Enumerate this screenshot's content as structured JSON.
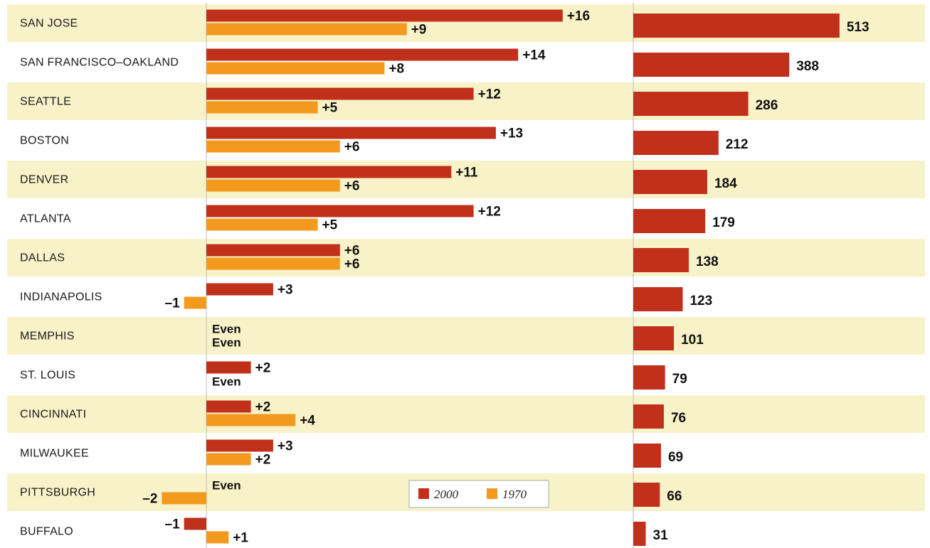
{
  "chart_data": [
    {
      "type": "bar",
      "orientation": "horizontal",
      "categories": [
        "SAN JOSE",
        "SAN FRANCISCO–OAKLAND",
        "SEATTLE",
        "BOSTON",
        "DENVER",
        "ATLANTA",
        "DALLAS",
        "INDIANAPOLIS",
        "MEMPHIS",
        "ST. LOUIS",
        "CINCINNATI",
        "MILWAUKEE",
        "PITTSBURGH",
        "BUFFALO"
      ],
      "series": [
        {
          "name": "2000",
          "values": [
            16,
            14,
            12,
            13,
            11,
            12,
            6,
            3,
            0,
            2,
            2,
            3,
            0,
            -1
          ],
          "labels": [
            "+16",
            "+14",
            "+12",
            "+13",
            "+11",
            "+12",
            "+6",
            "+3",
            "Even",
            "+2",
            "+2",
            "+3",
            "Even",
            "–1"
          ]
        },
        {
          "name": "1970",
          "values": [
            9,
            8,
            5,
            6,
            6,
            5,
            6,
            -1,
            0,
            0,
            4,
            2,
            -2,
            1
          ],
          "labels": [
            "+9",
            "+8",
            "+5",
            "+6",
            "+6",
            "+5",
            "+6",
            "–1",
            "Even",
            "Even",
            "+4",
            "+2",
            "–2",
            "+1"
          ]
        }
      ],
      "legend": {
        "items": [
          "2000",
          "1970"
        ],
        "placement": "bottom-center"
      },
      "colors": {
        "2000": "#c0301a",
        "1970": "#f39a1e"
      }
    },
    {
      "type": "bar",
      "orientation": "horizontal",
      "categories": [
        "SAN JOSE",
        "SAN FRANCISCO–OAKLAND",
        "SEATTLE",
        "BOSTON",
        "DENVER",
        "ATLANTA",
        "DALLAS",
        "INDIANAPOLIS",
        "MEMPHIS",
        "ST. LOUIS",
        "CINCINNATI",
        "MILWAUKEE",
        "PITTSBURGH",
        "BUFFALO"
      ],
      "values": [
        513,
        388,
        286,
        212,
        184,
        179,
        138,
        123,
        101,
        79,
        76,
        69,
        66,
        31
      ],
      "labels": [
        "513",
        "388",
        "286",
        "212",
        "184",
        "179",
        "138",
        "123",
        "101",
        "79",
        "76",
        "69",
        "66",
        "31"
      ],
      "colors": {
        "bar": "#c0301a"
      }
    }
  ],
  "colors": {
    "band": "#f8f2c8",
    "axis": "#bbbbbb"
  }
}
